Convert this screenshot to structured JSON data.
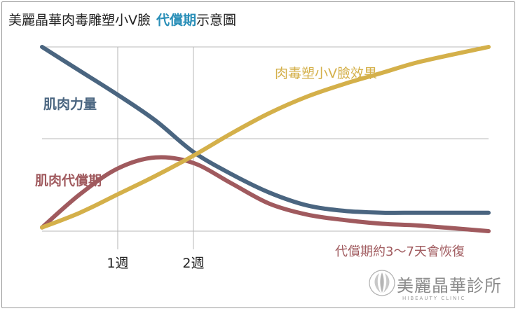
{
  "title": {
    "main": "美麗晶華肉毒雕塑小V臉",
    "highlight": "代償期",
    "suffix": "示意圖"
  },
  "colors": {
    "muscle_strength": "#4a6580",
    "compensation": "#a05a5e",
    "effect": "#d4b04a",
    "grid": "#b8b8b8",
    "highlight": "#2a8fb8"
  },
  "chart_data": {
    "type": "line",
    "title": "美麗晶華肉毒雕塑小V臉 代償期示意圖",
    "x_ticks": [
      {
        "x": 1,
        "label": "1週"
      },
      {
        "x": 2,
        "label": "2週"
      }
    ],
    "xlim": [
      0,
      5.9
    ],
    "ylim": [
      0,
      1
    ],
    "grid": true,
    "series": [
      {
        "name": "肌肉力量",
        "color": "#4a6580",
        "x": [
          0,
          0.5,
          1,
          1.5,
          2,
          2.5,
          3,
          3.5,
          4,
          4.5,
          5,
          5.9
        ],
        "y": [
          1.0,
          0.87,
          0.74,
          0.6,
          0.43,
          0.31,
          0.21,
          0.14,
          0.11,
          0.1,
          0.1,
          0.1
        ]
      },
      {
        "name": "肌肉代償期",
        "color": "#a05a5e",
        "x": [
          0,
          0.5,
          1,
          1.5,
          2,
          2.5,
          3,
          3.5,
          4,
          4.5,
          5,
          5.9
        ],
        "y": [
          0.02,
          0.2,
          0.34,
          0.4,
          0.37,
          0.26,
          0.15,
          0.09,
          0.06,
          0.04,
          0.03,
          0.0
        ]
      },
      {
        "name": "肉毒塑小V臉效果",
        "color": "#d4b04a",
        "x": [
          0,
          0.5,
          1,
          1.5,
          2,
          2.5,
          3,
          3.5,
          4,
          4.5,
          5,
          5.9
        ],
        "y": [
          0.02,
          0.1,
          0.2,
          0.3,
          0.41,
          0.53,
          0.64,
          0.73,
          0.8,
          0.86,
          0.92,
          1.0
        ]
      }
    ],
    "annotations": [
      {
        "text": "代償期約3～7天會恢復"
      }
    ]
  },
  "labels": {
    "muscle_strength": "肌肉力量",
    "compensation": "肌肉代償期",
    "effect": "肉毒塑小V臉效果",
    "recovery_note": "代償期約3～7天會恢復"
  },
  "logo": {
    "name": "美麗晶華診所",
    "sub": "HIBEAUTY CLINIC"
  }
}
